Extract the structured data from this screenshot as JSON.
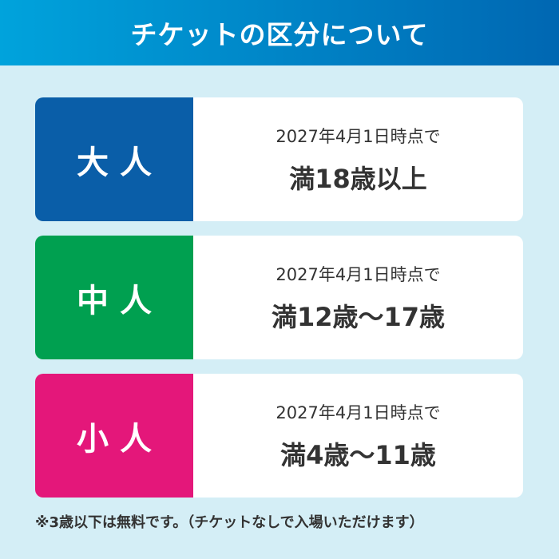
{
  "header": {
    "title": "チケットの区分について"
  },
  "colors": {
    "adult": "#0a5ea8",
    "middle": "#00a050",
    "child": "#e4177a"
  },
  "cards": [
    {
      "label": "大人",
      "date": "2027年4月1日時点で",
      "age": "満18歳以上"
    },
    {
      "label": "中人",
      "date": "2027年4月1日時点で",
      "age": "満12歳～17歳"
    },
    {
      "label": "小人",
      "date": "2027年4月1日時点で",
      "age": "満4歳～11歳"
    }
  ],
  "note": "※3歳以下は無料です。（チケットなしで入場いただけます）"
}
